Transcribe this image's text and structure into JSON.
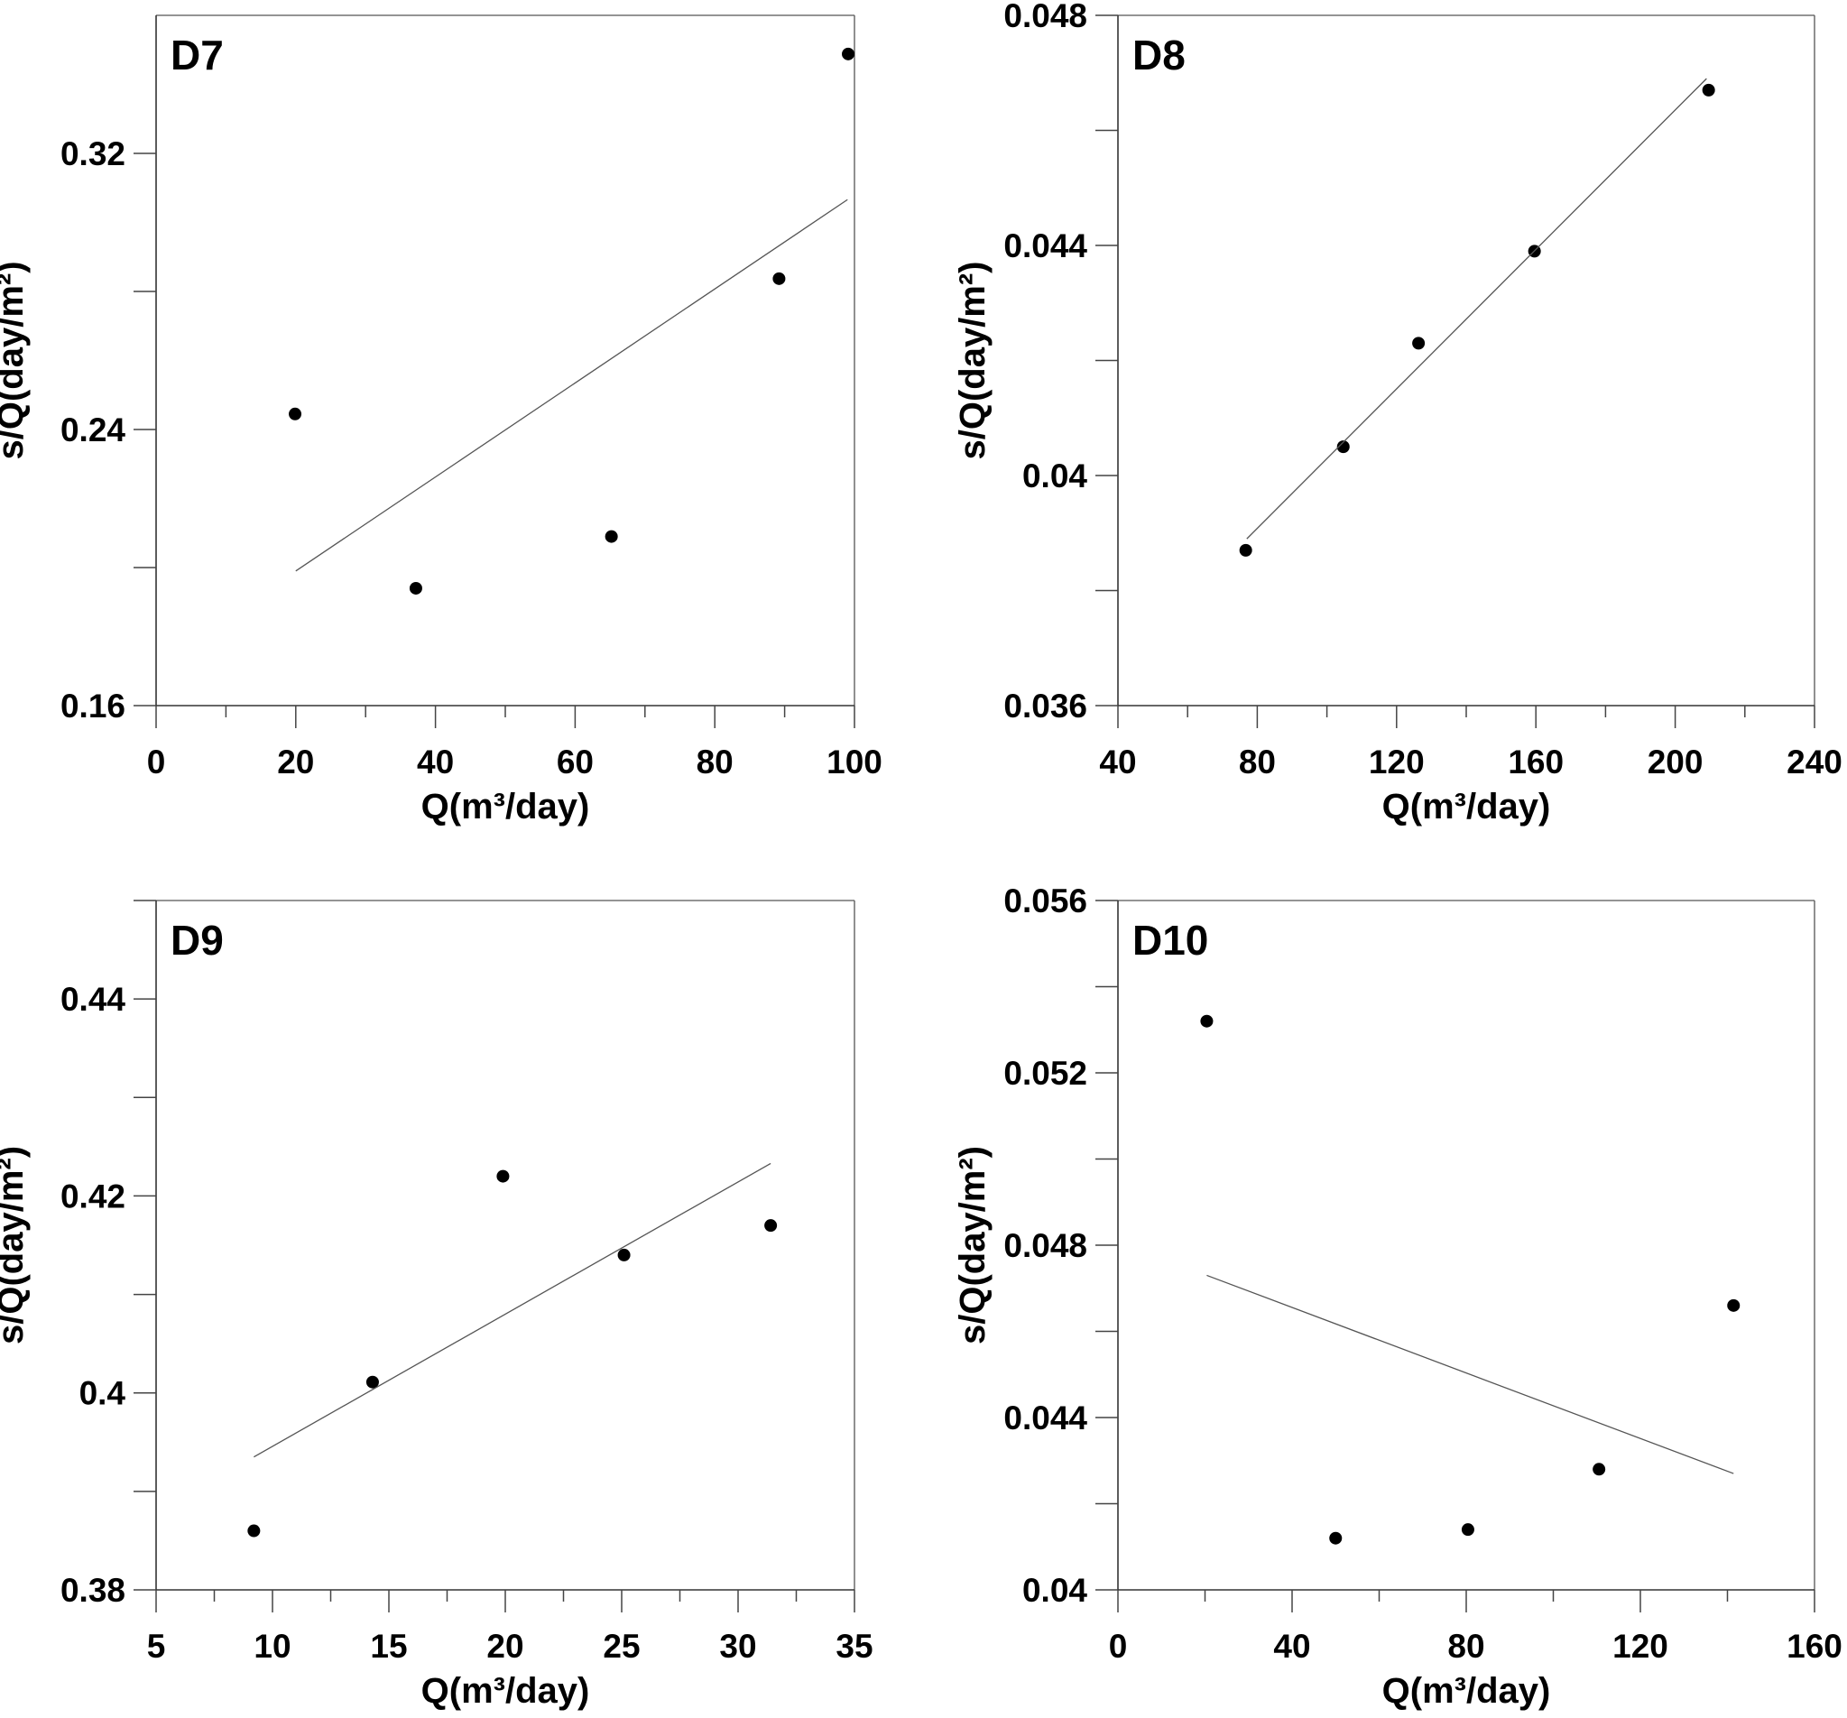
{
  "figure": {
    "panels": [
      "D7",
      "D8",
      "D9",
      "D10"
    ]
  },
  "chart_data": [
    {
      "type": "scatter",
      "title": "D7",
      "xlabel": "Q(m³/day)",
      "ylabel": "s/Q(day/m²)",
      "xlim": [
        0,
        100
      ],
      "ylim": [
        0.16,
        0.36
      ],
      "xticks": [
        0,
        20,
        40,
        60,
        80,
        100
      ],
      "xtick_labels": [
        "0",
        "20",
        "40",
        "60",
        "80",
        "100"
      ],
      "xminor": [
        10,
        30,
        50,
        70,
        90
      ],
      "yticks": [
        0.16,
        0.24,
        0.32
      ],
      "ytick_labels": [
        "0.16",
        "0.24",
        "0.32"
      ],
      "yminor": [
        0.2,
        0.28
      ],
      "grid": false,
      "series": [
        {
          "name": "observed",
          "x": [
            19.9,
            37.2,
            65.2,
            89.2,
            99.1
          ],
          "y": [
            0.2445,
            0.194,
            0.209,
            0.2837,
            0.3488
          ]
        },
        {
          "name": "linear fit",
          "type": "line",
          "x": [
            20,
            99
          ],
          "y": [
            0.199,
            0.3066
          ]
        }
      ]
    },
    {
      "type": "scatter",
      "title": "D8",
      "xlabel": "Q(m³/day)",
      "ylabel": "s/Q(day/m²)",
      "xlim": [
        40,
        240
      ],
      "ylim": [
        0.036,
        0.048
      ],
      "xticks": [
        40,
        80,
        120,
        160,
        200,
        240
      ],
      "xtick_labels": [
        "40",
        "80",
        "120",
        "160",
        "200",
        "240"
      ],
      "xminor": [
        60,
        100,
        140,
        180,
        220
      ],
      "yticks": [
        0.036,
        0.04,
        0.044,
        0.048
      ],
      "ytick_labels": [
        "0.036",
        "0.04",
        "0.044",
        "0.048"
      ],
      "yminor": [
        0.038,
        0.042,
        0.046
      ],
      "grid": false,
      "series": [
        {
          "name": "observed",
          "x": [
            76.7,
            104.7,
            126.3,
            159.6,
            209.6
          ],
          "y": [
            0.0387,
            0.0405,
            0.0423,
            0.0439,
            0.0467
          ]
        },
        {
          "name": "linear fit",
          "type": "line",
          "x": [
            77,
            209
          ],
          "y": [
            0.0389,
            0.0469
          ]
        }
      ]
    },
    {
      "type": "scatter",
      "title": "D9",
      "xlabel": "Q(m³/day)",
      "ylabel": "s/Q(day/m²)",
      "xlim": [
        5,
        35
      ],
      "ylim": [
        0.38,
        0.45
      ],
      "xticks": [
        5,
        10,
        15,
        20,
        25,
        30,
        35
      ],
      "xtick_labels": [
        "5",
        "10",
        "15",
        "20",
        "25",
        "30",
        "35"
      ],
      "xminor": [
        7.5,
        12.5,
        17.5,
        22.5,
        27.5,
        32.5
      ],
      "yticks": [
        0.38,
        0.4,
        0.42,
        0.44
      ],
      "ytick_labels": [
        "0.38",
        "0.4",
        "0.42",
        "0.44"
      ],
      "yminor": [
        0.39,
        0.41,
        0.43,
        0.45
      ],
      "grid": false,
      "series": [
        {
          "name": "observed",
          "x": [
            9.2,
            14.3,
            19.9,
            25.1,
            31.4
          ],
          "y": [
            0.386,
            0.4011,
            0.422,
            0.414,
            0.417
          ]
        },
        {
          "name": "linear fit",
          "type": "line",
          "x": [
            9.2,
            31.4
          ],
          "y": [
            0.3935,
            0.4233
          ]
        }
      ]
    },
    {
      "type": "scatter",
      "title": "D10",
      "xlabel": "Q(m³/day)",
      "ylabel": "s/Q(day/m²)",
      "xlim": [
        0,
        160
      ],
      "ylim": [
        0.04,
        0.056
      ],
      "xticks": [
        0,
        40,
        80,
        120,
        160
      ],
      "xtick_labels": [
        "0",
        "40",
        "80",
        "120",
        "160"
      ],
      "xminor": [
        20,
        60,
        100,
        140
      ],
      "yticks": [
        0.04,
        0.044,
        0.048,
        0.052,
        0.056
      ],
      "ytick_labels": [
        "0.04",
        "0.044",
        "0.048",
        "0.052",
        "0.056"
      ],
      "yminor": [
        0.042,
        0.046,
        0.05,
        0.054
      ],
      "grid": false,
      "series": [
        {
          "name": "observed",
          "x": [
            20.4,
            50.0,
            80.4,
            110.5,
            141.4
          ],
          "y": [
            0.0532,
            0.0412,
            0.0414,
            0.0428,
            0.0466
          ]
        },
        {
          "name": "linear fit",
          "type": "line",
          "x": [
            20.4,
            141.4
          ],
          "y": [
            0.0473,
            0.0427
          ]
        }
      ]
    }
  ]
}
